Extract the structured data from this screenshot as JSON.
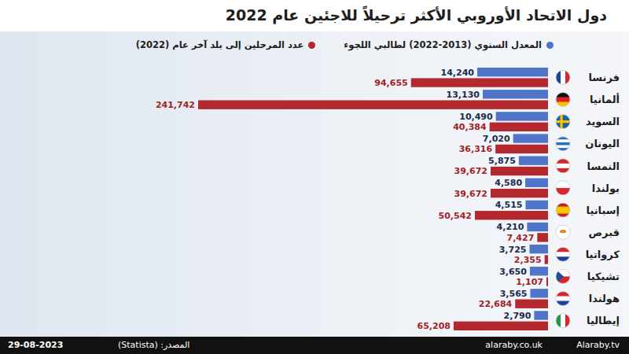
{
  "chart_data": {
    "type": "bar",
    "orientation": "horizontal",
    "title": "دول الاتحاد الأوروبي الأكثر ترحيلاً للاجئين عام 2022",
    "categories": [
      "فرنسا",
      "ألمانيا",
      "السويد",
      "اليونان",
      "النمسا",
      "بولندا",
      "إسبانيا",
      "قبرص",
      "كرواتيا",
      "تشيكيا",
      "هولندا",
      "إيطاليا"
    ],
    "series": [
      {
        "name": "المعدل السنوي (2013-2022) لطالبي اللجوء",
        "color": "#4f74c8",
        "values": [
          14240,
          13130,
          10490,
          7020,
          5875,
          4580,
          4515,
          4210,
          3725,
          3650,
          3565,
          2790
        ],
        "value_labels": [
          "14,240",
          "13,130",
          "10,490",
          "7,020",
          "5,875",
          "4,580",
          "4,515",
          "4,210",
          "3,725",
          "3,650",
          "3,565",
          "2,790"
        ]
      },
      {
        "name": "عدد المرحلين إلى بلد آخر عام (2022)",
        "color": "#b3282d",
        "values": [
          94655,
          241742,
          40384,
          36316,
          39672,
          39672,
          50542,
          7427,
          2355,
          1107,
          22684,
          65208
        ],
        "value_labels": [
          "94,655",
          "241,742",
          "40,384",
          "36,316",
          "39,672",
          "39,672",
          "50,542",
          "7,427",
          "2,355",
          "1,107",
          "22,684",
          "65,208"
        ]
      }
    ],
    "data_labels": true,
    "tick_labels": "y",
    "legend": "top-right",
    "grid": false
  },
  "footer": {
    "date": "29-08-2023",
    "source": "المصدر: (Statista)",
    "website": "alaraby.co.uk",
    "social": "Alaraby.tv"
  }
}
